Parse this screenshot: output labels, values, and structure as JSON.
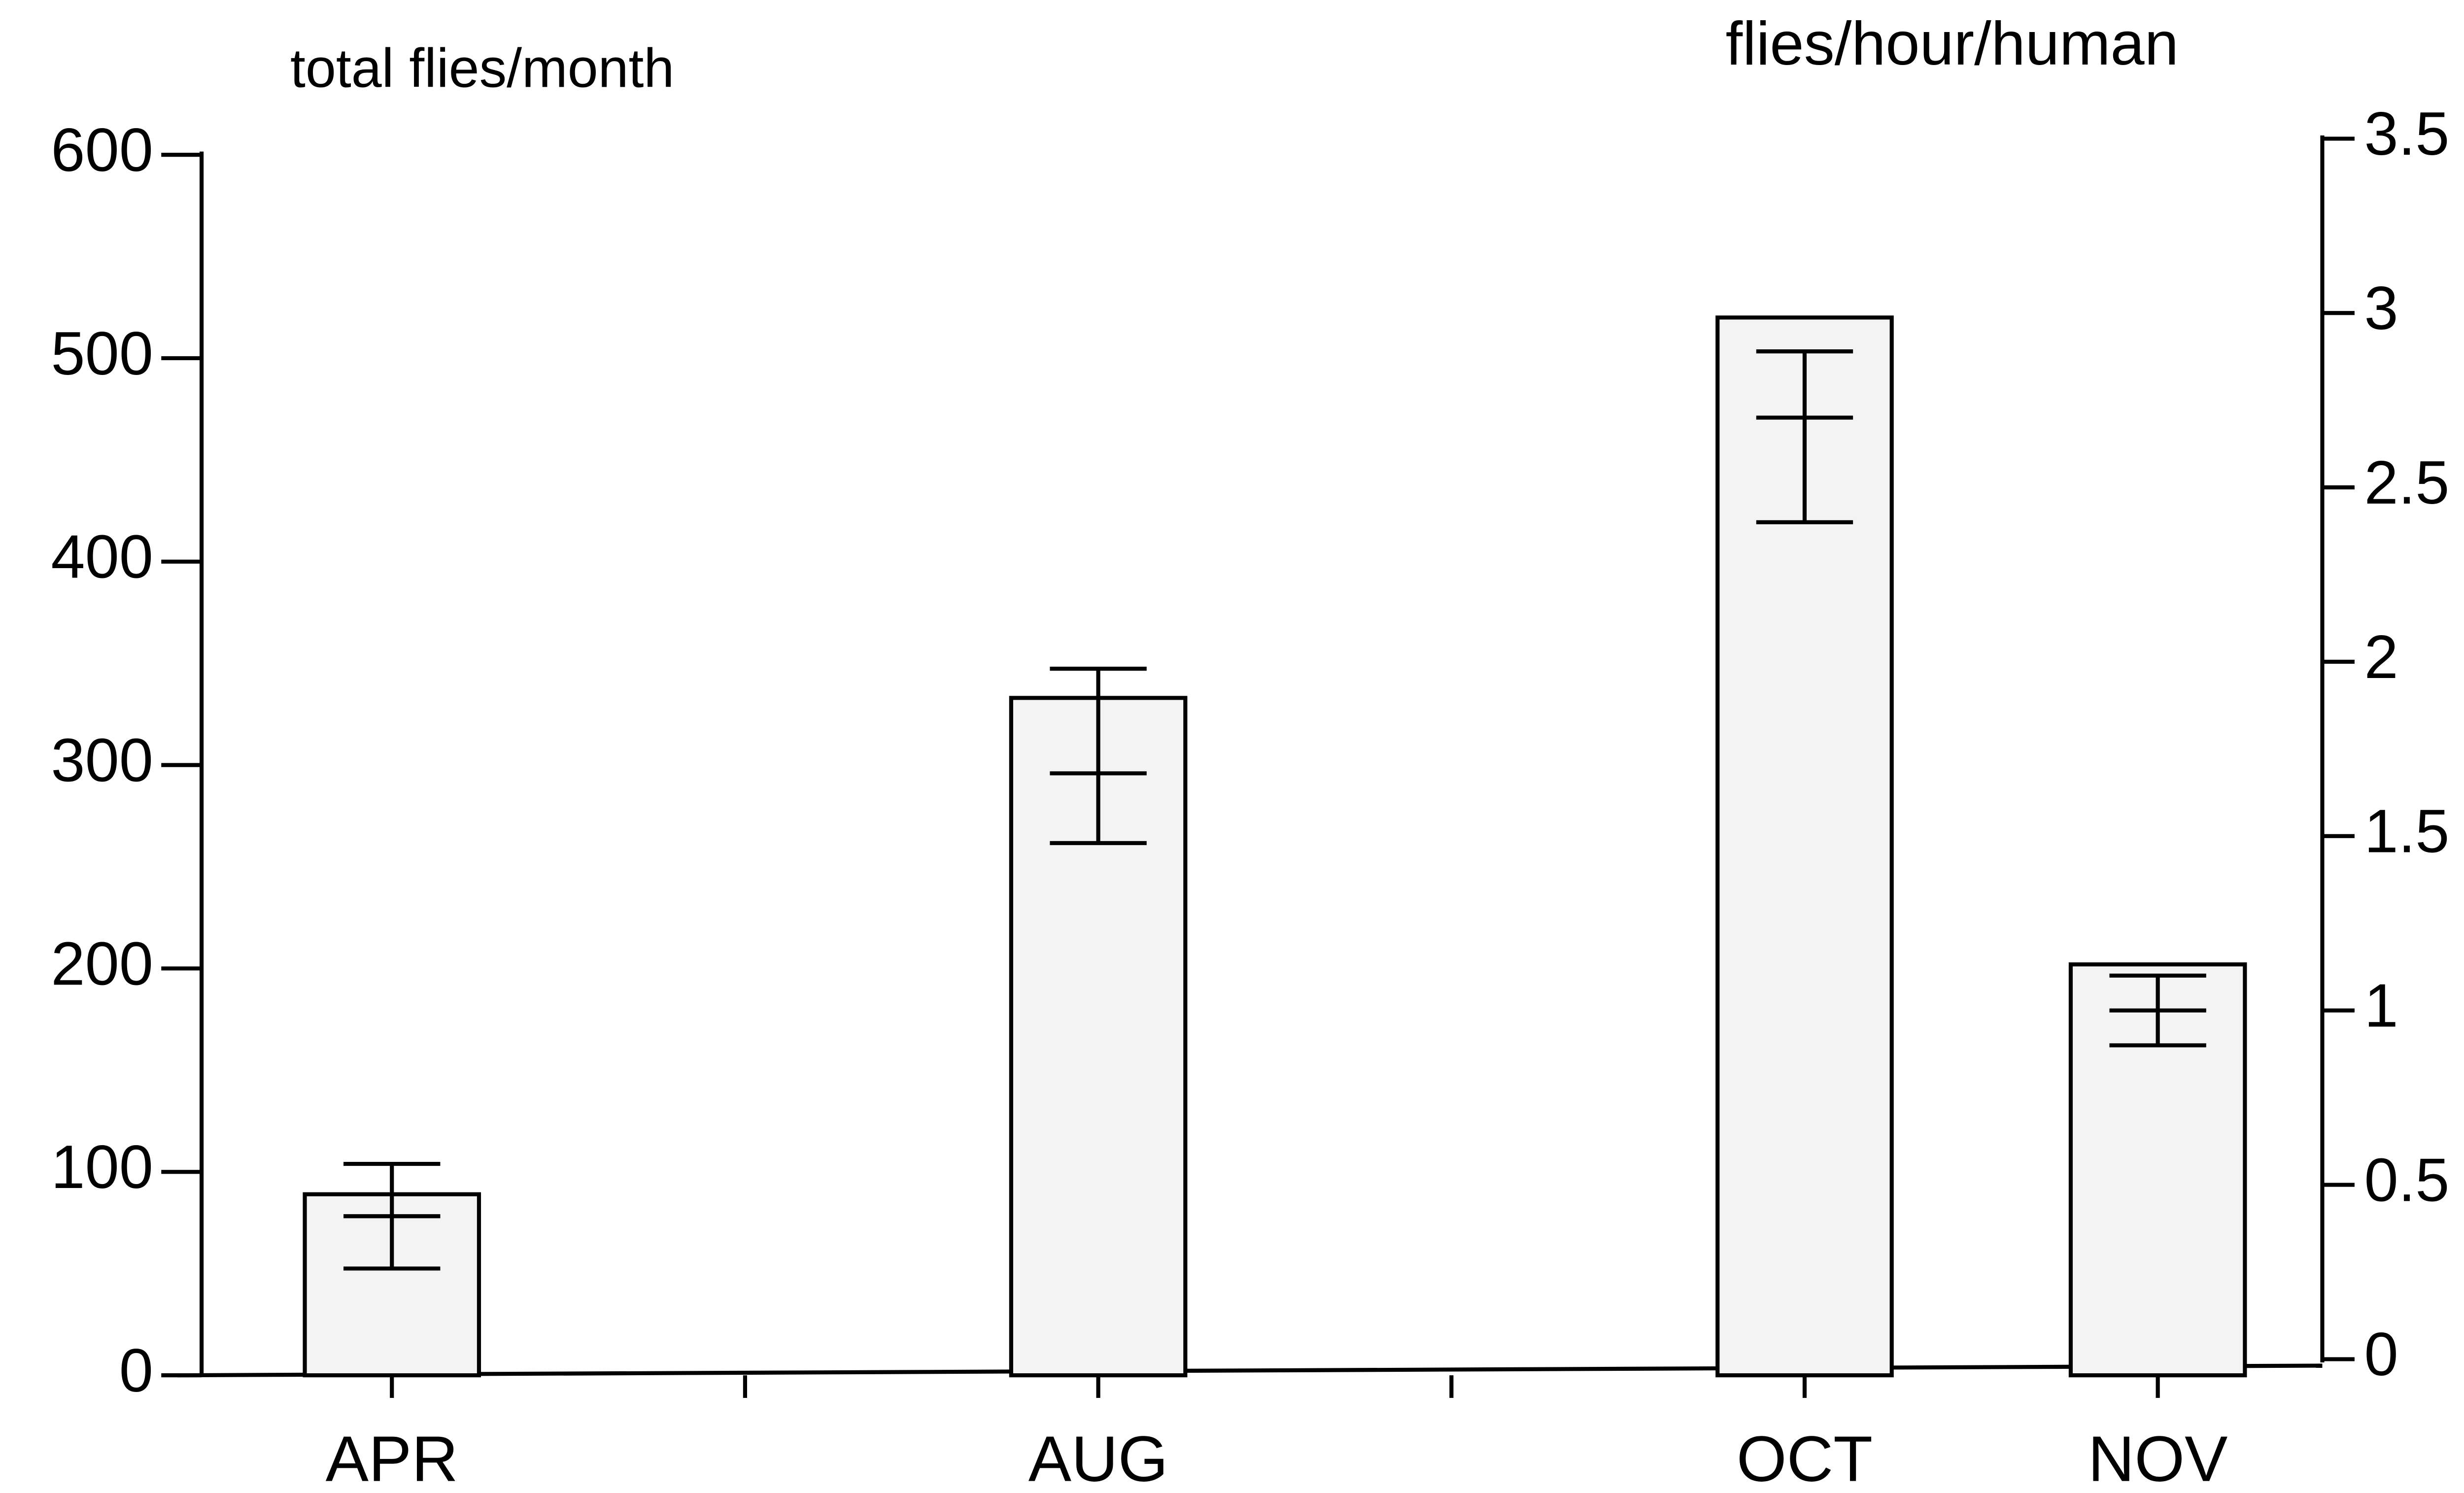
{
  "chart_data": {
    "type": "bar",
    "ylabel": "total flies/month",
    "y2label": "flies/hour/human",
    "categories": [
      "APR",
      null,
      "AUG",
      null,
      "OCT",
      "NOV"
    ],
    "series": [
      {
        "values": [
          89,
          null,
          333,
          null,
          520,
          202
        ],
        "color": "#f3f3f3"
      },
      {
        "axis": "y2",
        "type": "errorbar",
        "color": "#000000",
        "values": [
          0.41,
          null,
          1.68,
          null,
          2.7,
          1.0
        ],
        "low": [
          0.26,
          null,
          1.48,
          null,
          2.4,
          0.9
        ],
        "high": [
          0.56,
          null,
          1.98,
          null,
          2.89,
          1.1
        ]
      }
    ],
    "ylim": [
      0,
      600
    ],
    "yticks": [
      0,
      100,
      200,
      300,
      400,
      500,
      600
    ],
    "y2lim": [
      0,
      3.5
    ],
    "y2ticks": [
      0,
      0.5,
      1,
      1.5,
      2,
      2.5,
      3,
      3.5
    ],
    "grid": false
  }
}
